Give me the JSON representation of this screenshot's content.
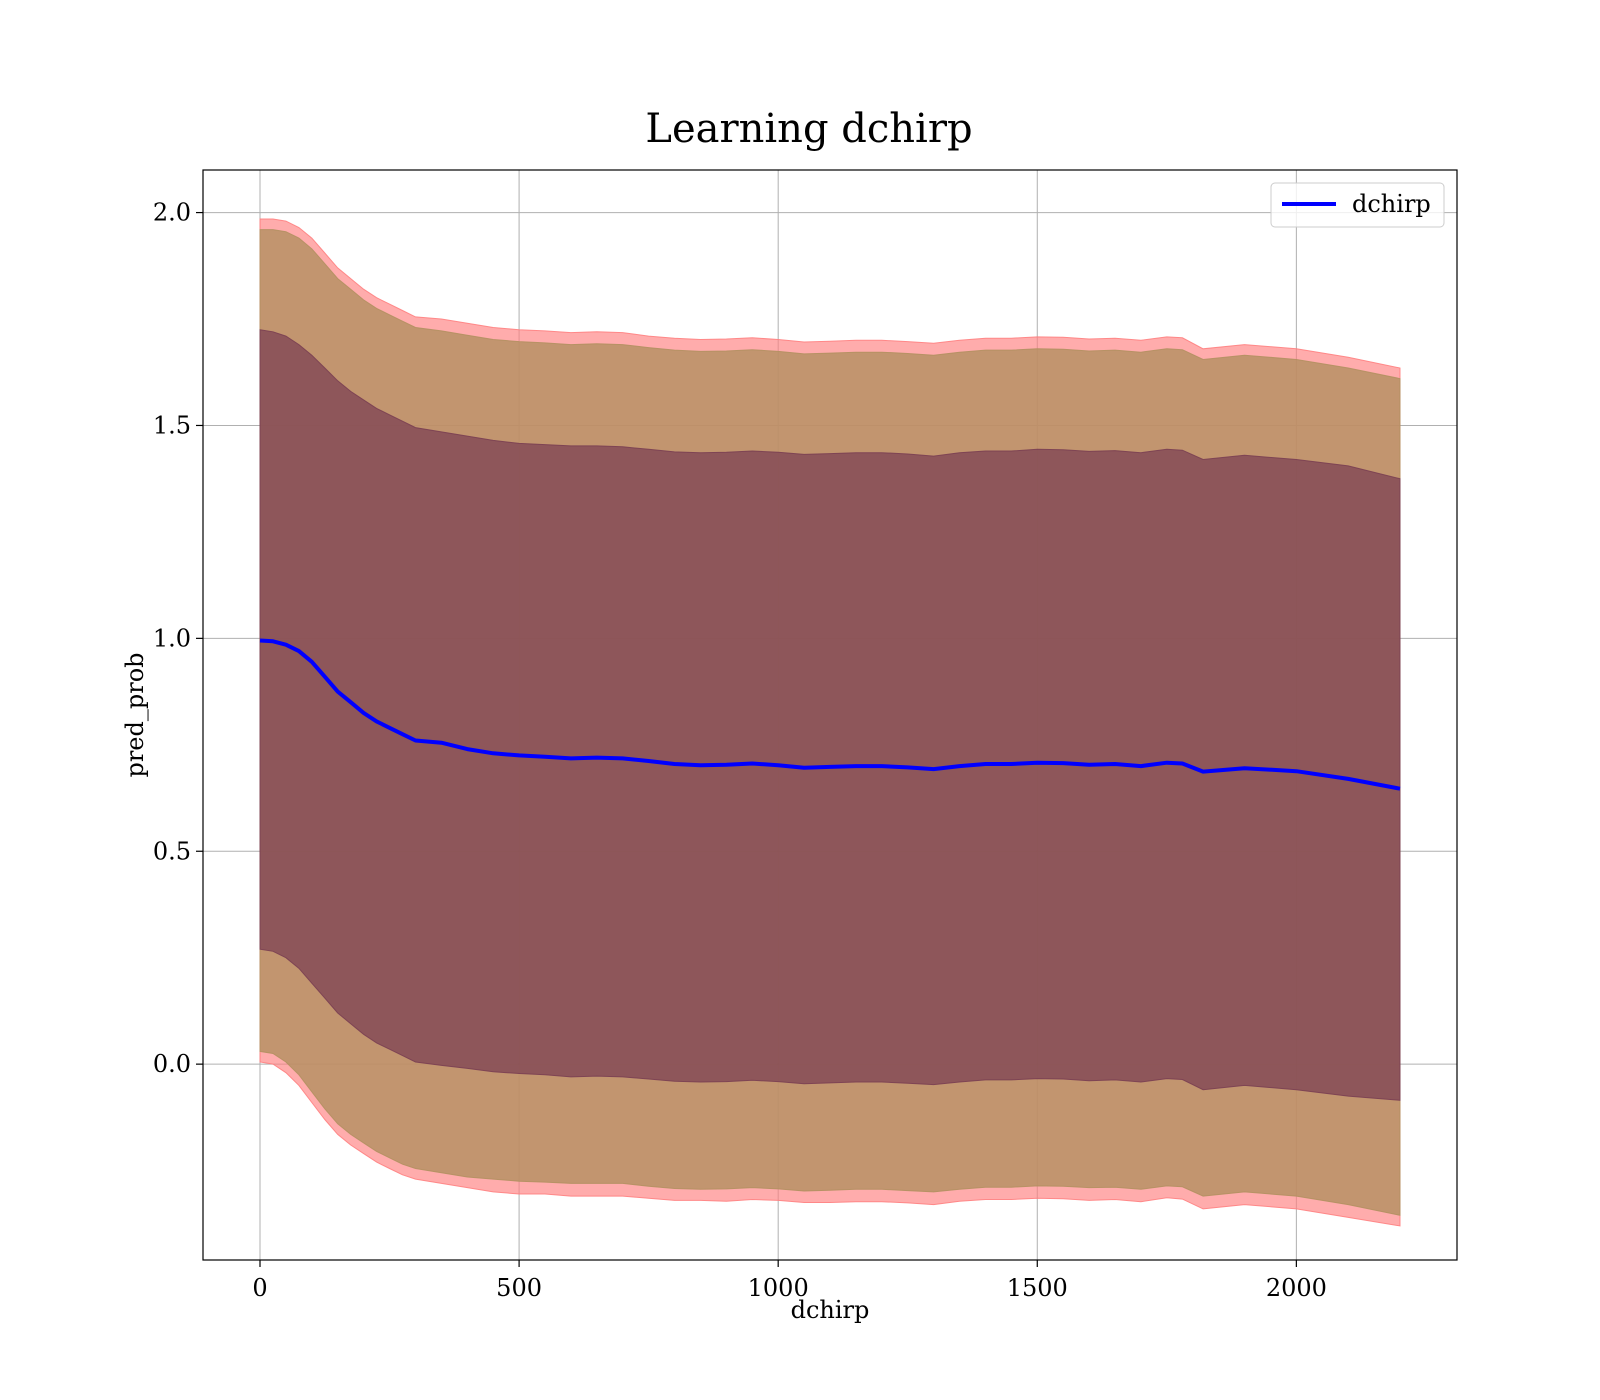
{
  "chart_data": {
    "type": "line",
    "title": "Learning dchirp",
    "xlabel": "dchirp",
    "ylabel": "pred_prob",
    "xlim": [
      -110,
      2310
    ],
    "ylim": [
      -0.46,
      2.1
    ],
    "xticks": [
      0,
      500,
      1000,
      1500,
      2000
    ],
    "xtick_labels": [
      "0",
      "500",
      "1000",
      "1500",
      "2000"
    ],
    "yticks": [
      0.0,
      0.5,
      1.0,
      1.5,
      2.0
    ],
    "ytick_labels": [
      "0.0",
      "0.5",
      "1.0",
      "1.5",
      "2.0"
    ],
    "grid": true,
    "legend": {
      "position": "top-right",
      "entries": [
        "dchirp"
      ]
    },
    "colors": {
      "line": "#0000ff",
      "band_outer": "#ff8080",
      "band_middle": "#b39060",
      "band_inner": "#7a3f52"
    },
    "x": [
      0,
      25,
      50,
      75,
      100,
      125,
      150,
      175,
      200,
      225,
      250,
      275,
      300,
      350,
      400,
      450,
      500,
      550,
      600,
      650,
      700,
      750,
      800,
      850,
      900,
      950,
      1000,
      1050,
      1100,
      1150,
      1200,
      1250,
      1300,
      1350,
      1400,
      1450,
      1500,
      1550,
      1600,
      1650,
      1700,
      1750,
      1780,
      1820,
      1900,
      2000,
      2100,
      2200
    ],
    "series": [
      {
        "name": "dchirp",
        "values": [
          0.995,
          0.993,
          0.985,
          0.97,
          0.945,
          0.91,
          0.875,
          0.85,
          0.825,
          0.805,
          0.79,
          0.775,
          0.76,
          0.755,
          0.74,
          0.73,
          0.725,
          0.722,
          0.718,
          0.72,
          0.718,
          0.712,
          0.705,
          0.702,
          0.703,
          0.706,
          0.702,
          0.696,
          0.698,
          0.7,
          0.7,
          0.697,
          0.693,
          0.7,
          0.705,
          0.705,
          0.708,
          0.707,
          0.703,
          0.705,
          0.7,
          0.708,
          0.706,
          0.687,
          0.695,
          0.688,
          0.67,
          0.647
        ]
      }
    ],
    "bands": [
      {
        "lower": [
          0.005,
          0.0,
          -0.02,
          -0.05,
          -0.09,
          -0.13,
          -0.165,
          -0.19,
          -0.21,
          -0.23,
          -0.245,
          -0.26,
          -0.27,
          -0.28,
          -0.29,
          -0.3,
          -0.305,
          -0.305,
          -0.31,
          -0.31,
          -0.31,
          -0.315,
          -0.32,
          -0.32,
          -0.322,
          -0.318,
          -0.32,
          -0.325,
          -0.325,
          -0.323,
          -0.323,
          -0.326,
          -0.33,
          -0.322,
          -0.318,
          -0.318,
          -0.315,
          -0.316,
          -0.32,
          -0.318,
          -0.323,
          -0.314,
          -0.317,
          -0.34,
          -0.33,
          -0.34,
          -0.36,
          -0.38
        ],
        "upper": [
          1.985,
          1.985,
          1.98,
          1.965,
          1.94,
          1.905,
          1.87,
          1.845,
          1.82,
          1.8,
          1.785,
          1.77,
          1.755,
          1.75,
          1.74,
          1.73,
          1.725,
          1.722,
          1.718,
          1.72,
          1.718,
          1.71,
          1.705,
          1.702,
          1.703,
          1.706,
          1.702,
          1.696,
          1.698,
          1.7,
          1.7,
          1.697,
          1.693,
          1.7,
          1.705,
          1.705,
          1.708,
          1.707,
          1.703,
          1.705,
          1.7,
          1.708,
          1.706,
          1.68,
          1.69,
          1.68,
          1.66,
          1.635
        ]
      },
      {
        "lower": [
          0.03,
          0.025,
          0.005,
          -0.025,
          -0.065,
          -0.105,
          -0.14,
          -0.165,
          -0.185,
          -0.205,
          -0.22,
          -0.235,
          -0.245,
          -0.255,
          -0.265,
          -0.27,
          -0.275,
          -0.277,
          -0.28,
          -0.28,
          -0.28,
          -0.287,
          -0.292,
          -0.294,
          -0.293,
          -0.29,
          -0.293,
          -0.298,
          -0.296,
          -0.294,
          -0.294,
          -0.297,
          -0.3,
          -0.294,
          -0.289,
          -0.289,
          -0.286,
          -0.287,
          -0.29,
          -0.289,
          -0.294,
          -0.286,
          -0.288,
          -0.31,
          -0.3,
          -0.31,
          -0.33,
          -0.355
        ],
        "upper": [
          1.96,
          1.96,
          1.955,
          1.94,
          1.915,
          1.88,
          1.845,
          1.82,
          1.795,
          1.775,
          1.76,
          1.745,
          1.73,
          1.722,
          1.712,
          1.702,
          1.697,
          1.694,
          1.69,
          1.692,
          1.69,
          1.683,
          1.677,
          1.674,
          1.675,
          1.678,
          1.674,
          1.668,
          1.67,
          1.672,
          1.672,
          1.669,
          1.665,
          1.672,
          1.677,
          1.677,
          1.68,
          1.679,
          1.675,
          1.677,
          1.672,
          1.68,
          1.678,
          1.655,
          1.665,
          1.655,
          1.635,
          1.61
        ]
      },
      {
        "lower": [
          0.27,
          0.265,
          0.25,
          0.225,
          0.19,
          0.155,
          0.12,
          0.095,
          0.07,
          0.05,
          0.035,
          0.02,
          0.005,
          -0.003,
          -0.01,
          -0.018,
          -0.022,
          -0.025,
          -0.03,
          -0.028,
          -0.03,
          -0.035,
          -0.04,
          -0.042,
          -0.041,
          -0.038,
          -0.041,
          -0.046,
          -0.044,
          -0.042,
          -0.042,
          -0.045,
          -0.048,
          -0.042,
          -0.037,
          -0.037,
          -0.034,
          -0.035,
          -0.039,
          -0.037,
          -0.042,
          -0.034,
          -0.036,
          -0.06,
          -0.05,
          -0.06,
          -0.075,
          -0.085
        ],
        "upper": [
          1.725,
          1.72,
          1.71,
          1.69,
          1.665,
          1.635,
          1.605,
          1.58,
          1.56,
          1.54,
          1.525,
          1.51,
          1.495,
          1.485,
          1.475,
          1.465,
          1.458,
          1.455,
          1.452,
          1.452,
          1.45,
          1.444,
          1.438,
          1.436,
          1.437,
          1.44,
          1.437,
          1.432,
          1.434,
          1.436,
          1.436,
          1.433,
          1.428,
          1.436,
          1.44,
          1.44,
          1.444,
          1.443,
          1.439,
          1.441,
          1.436,
          1.444,
          1.442,
          1.42,
          1.43,
          1.42,
          1.405,
          1.375
        ]
      }
    ]
  }
}
